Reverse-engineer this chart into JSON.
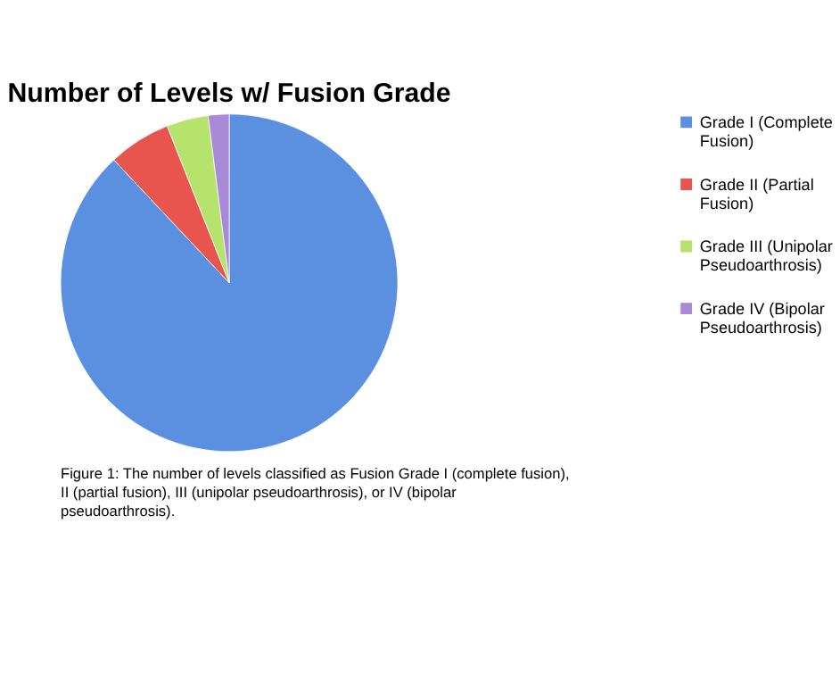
{
  "chart_data": {
    "type": "pie",
    "title": "Number of Levels w/ Fusion Grade",
    "categories": [
      "Grade I (Complete Fusion)",
      "Grade II (Partial Fusion)",
      "Grade III (Unipolar Pseudoarthrosis)",
      "Grade IV (Bipolar Pseudoarthrosis)"
    ],
    "values": [
      88,
      6,
      4,
      2
    ],
    "colors": [
      "#5b8fdf",
      "#e8554f",
      "#b5e36b",
      "#a98ad6"
    ],
    "legend": "right",
    "annotations": [
      "Figure 1: The number of levels classified as Fusion Grade I (complete fusion), II (partial fusion), III (unipolar pseudoarthrosis), or IV (bipolar pseudoarthrosis)."
    ]
  }
}
